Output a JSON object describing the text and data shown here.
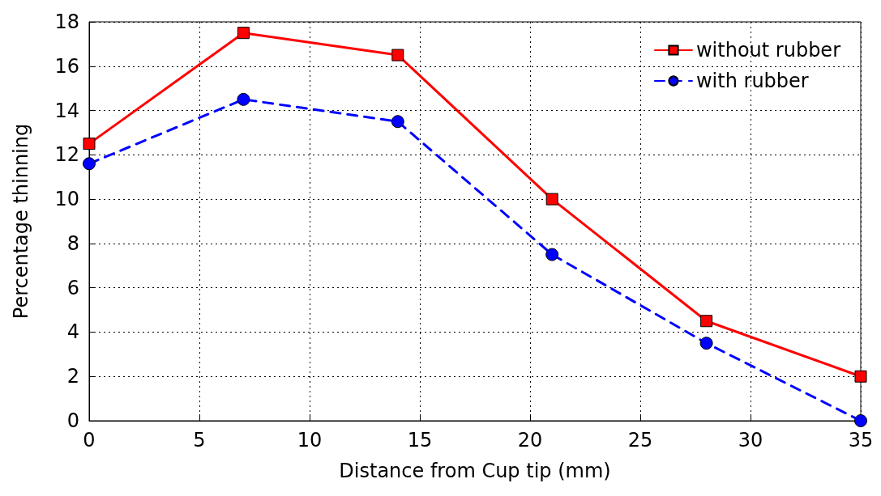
{
  "chart_data": {
    "type": "line",
    "xlabel": "Distance from Cup tip (mm)",
    "ylabel": "Percentage thinning",
    "x": [
      0,
      7,
      14,
      21,
      28,
      35
    ],
    "series": [
      {
        "name": "without rubber",
        "color": "#ff0000",
        "values": [
          12.5,
          17.5,
          16.5,
          10,
          4.5,
          2
        ],
        "marker": "square",
        "line_style": "solid"
      },
      {
        "name": "with rubber",
        "color": "#0000ff",
        "values": [
          11.6,
          14.5,
          13.5,
          7.5,
          3.5,
          0
        ],
        "marker": "circle",
        "line_style": "dashed"
      }
    ],
    "xlim": [
      0,
      35
    ],
    "xticks": [
      0,
      5,
      10,
      15,
      20,
      25,
      30,
      35
    ],
    "ylim": [
      0,
      18
    ],
    "yticks": [
      0,
      2,
      4,
      6,
      8,
      10,
      12,
      14,
      16,
      18
    ],
    "grid": true,
    "legend": "top right"
  }
}
